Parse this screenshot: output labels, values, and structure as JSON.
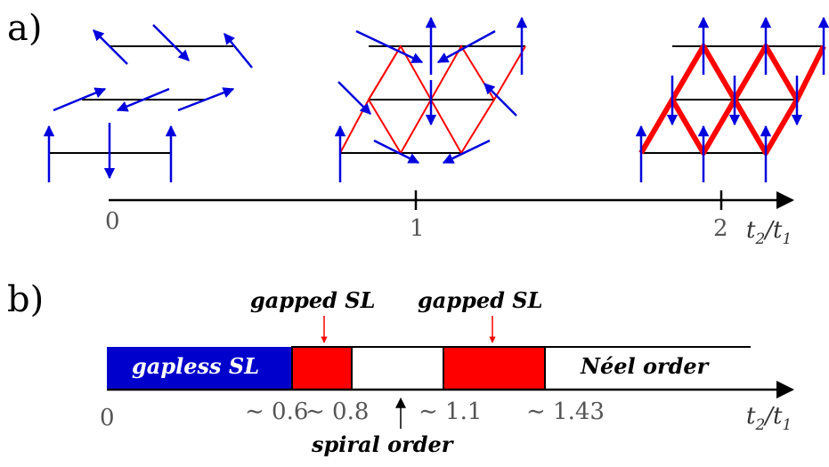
{
  "panel_a": {
    "label": "a)",
    "axis": {
      "ticks": [
        "0",
        "1",
        "2"
      ],
      "label_main": "t",
      "label_sub1": "2",
      "label_sep": "/t",
      "label_sub2": "1"
    }
  },
  "panel_b": {
    "label": "b)",
    "regions": [
      {
        "name": "gapless SL",
        "color": "#0000cc",
        "range": [
          0,
          0.6
        ]
      },
      {
        "name": "gapped SL",
        "color": "#ff0000",
        "range": [
          0.6,
          0.8
        ]
      },
      {
        "name": "spiral order",
        "color": "#ffffff",
        "range": [
          0.8,
          1.1
        ]
      },
      {
        "name": "gapped SL",
        "color": "#ff0000",
        "range": [
          1.1,
          1.43
        ]
      },
      {
        "name": "Néel order",
        "color": "#ffffff",
        "range": [
          1.43,
          null
        ]
      }
    ],
    "texts": {
      "gapless": "gapless SL",
      "gapped1": "gapped SL",
      "gapped2": "gapped SL",
      "spiral": "spiral order",
      "neel": "Néel order"
    },
    "ticks": [
      "0",
      "∼ 0.6",
      "∼ 0.8",
      "∼ 1.1",
      "∼ 1.43"
    ],
    "axis": {
      "label_main": "t",
      "label_sub1": "2",
      "label_sep": "/t",
      "label_sub2": "1"
    }
  },
  "colors": {
    "spin": "#0000dd",
    "bond": "#ff0000",
    "lattice": "#000000",
    "marker": "#ff0000"
  },
  "icons": {
    "spin_arrow": "arrow-icon"
  }
}
